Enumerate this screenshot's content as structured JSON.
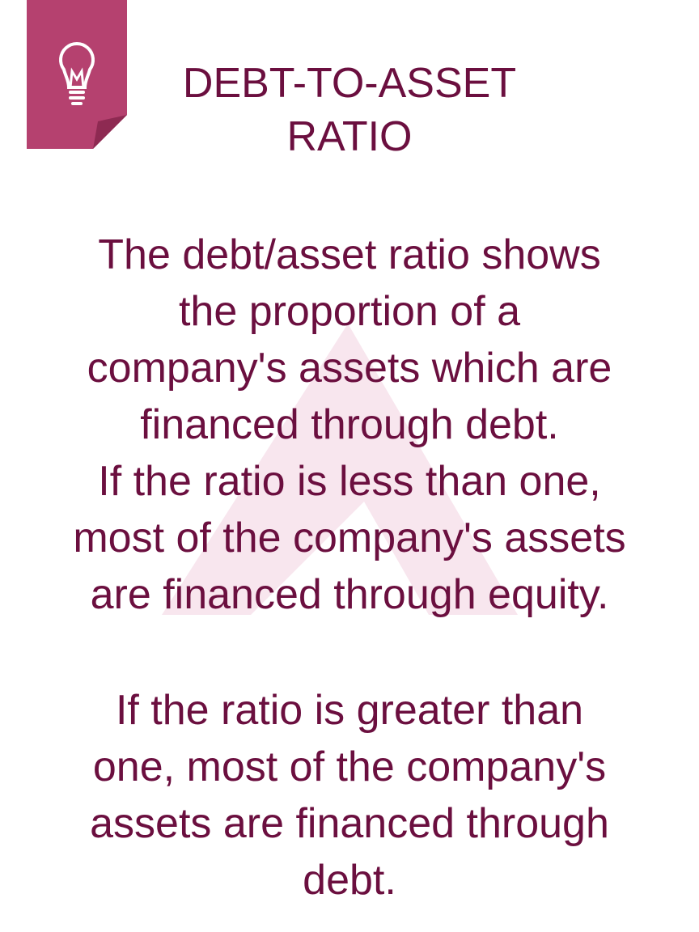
{
  "colors": {
    "text": "#6b0f3f",
    "badge": "#b5416f",
    "badge_fold": "#8e2a52",
    "watermark": "#f6e4ec"
  },
  "badge": {
    "icon": "lightbulb-icon"
  },
  "title": "DEBT-TO-ASSET\nRATIO",
  "paragraphs": [
    "The debt/asset ratio shows\nthe proportion of a\ncompany's assets which are\nfinanced through debt.\nIf the ratio is less than one,\nmost of the company's assets\nare financed through equity.",
    "If the ratio is greater than\none, most of the company's\nassets are financed through\ndebt."
  ]
}
